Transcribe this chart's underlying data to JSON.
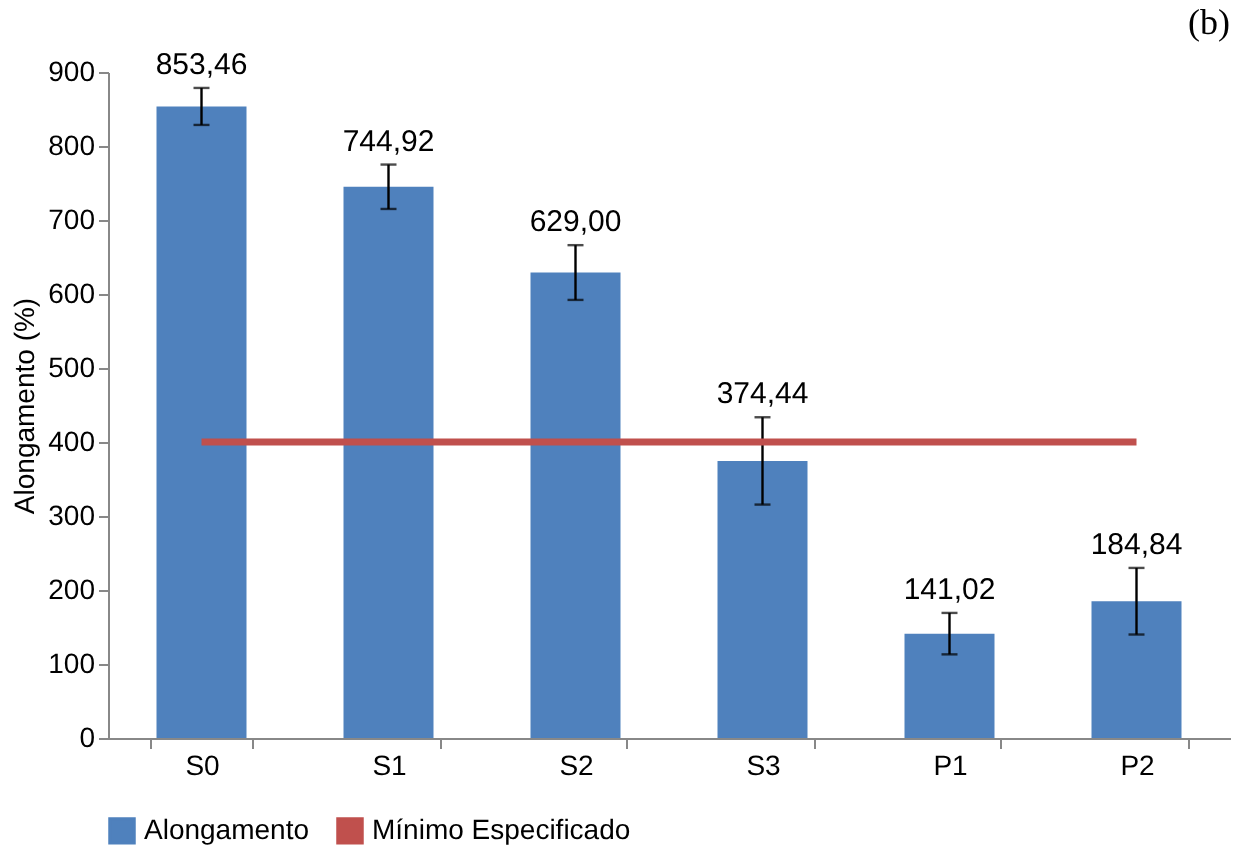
{
  "chart_data": {
    "type": "bar",
    "title": "(b)",
    "ylabel": "Alongamento (%)",
    "categories": [
      "S0",
      "S1",
      "S2",
      "S3",
      "P1",
      "P2"
    ],
    "series": [
      {
        "name": "Alongamento",
        "color": "#4f81bd",
        "values": [
          853.46,
          744.92,
          629.0,
          374.44,
          141.02,
          184.84
        ],
        "errors": [
          25,
          30,
          37,
          59,
          28,
          45
        ],
        "value_labels": [
          "853,46",
          "744,92",
          "629,00",
          "374,44",
          "141,02",
          "184,84"
        ]
      },
      {
        "name": "Mínimo Especificado",
        "type": "line",
        "color": "#c0504d",
        "values": [
          400,
          400,
          400,
          400,
          400,
          400
        ]
      }
    ],
    "ylim": [
      0,
      900
    ],
    "yticks": [
      0,
      100,
      200,
      300,
      400,
      500,
      600,
      700,
      800,
      900
    ],
    "grid": false,
    "legend": "bottom"
  }
}
